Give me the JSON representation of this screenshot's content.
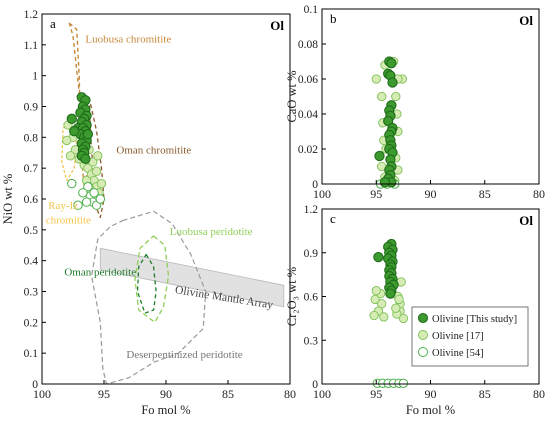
{
  "colors": {
    "this_study_fill": "#3d9a2e",
    "this_study_stroke": "#1f6b1a",
    "ref17_fill": "#d6ecb4",
    "ref17_stroke": "#7fc15a",
    "ref54_stroke": "#4caf4a",
    "luobusa_chromitite": "#c8893b",
    "oman_chromitite": "#8a5a2b",
    "ray_iz": "#f2c64b",
    "luobusa_peridotite": "#8fcf5a",
    "oman_peridotite": "#1e7d2a",
    "deserp": "#9a9a9a",
    "mantle_array": "#dcdcdc"
  },
  "chart_data": [
    {
      "panel": "a",
      "type": "scatter",
      "tag": "Ol",
      "xlabel": "Fo mol %",
      "ylabel": "NiO wt %",
      "xlim": [
        100,
        80
      ],
      "ylim": [
        0,
        1.2
      ],
      "xticks": [
        "100",
        "95",
        "90",
        "85",
        "80"
      ],
      "yticks": [
        "0",
        "0.1",
        "0.2",
        "0.3",
        "0.4",
        "0.5",
        "0.6",
        "0.7",
        "0.8",
        "0.9",
        "1",
        "1.1",
        "1.2"
      ],
      "field_labels": {
        "luobusa_chromitite": "Luobusa chromitite",
        "oman_chromitite": "Oman chromitite",
        "ray_iz_1": "Ray-Iz",
        "ray_iz_2": "chromitite",
        "luobusa_peridotite": "Luobusa peridotite",
        "oman_peridotite": "Oman peridotite",
        "mantle_array": "Olivine Mantle Array",
        "deserp": "Deserpentinized peridotite"
      },
      "fields": {
        "luobusa_chromitite": [
          [
            97.8,
            1.17
          ],
          [
            97.2,
            1.15
          ],
          [
            97.0,
            1.0
          ],
          [
            96.9,
            0.85
          ],
          [
            96.8,
            0.72
          ],
          [
            96.6,
            0.64
          ],
          [
            96.3,
            0.7
          ],
          [
            96.6,
            0.82
          ],
          [
            97.1,
            0.98
          ],
          [
            97.5,
            1.13
          ]
        ],
        "oman_chromitite": [
          [
            96.2,
            0.93
          ],
          [
            95.6,
            0.82
          ],
          [
            95.2,
            0.7
          ],
          [
            95.0,
            0.6
          ],
          [
            95.3,
            0.54
          ],
          [
            95.7,
            0.58
          ],
          [
            95.9,
            0.7
          ],
          [
            96.1,
            0.82
          ]
        ],
        "ray_iz": [
          [
            98.3,
            0.83
          ],
          [
            97.6,
            0.85
          ],
          [
            97.2,
            0.78
          ],
          [
            97.4,
            0.7
          ],
          [
            98.0,
            0.66
          ],
          [
            98.4,
            0.72
          ]
        ],
        "luobusa_peridotite": [
          [
            91.0,
            0.48
          ],
          [
            90.1,
            0.45
          ],
          [
            89.8,
            0.35
          ],
          [
            90.2,
            0.25
          ],
          [
            90.9,
            0.2
          ],
          [
            92.2,
            0.24
          ],
          [
            92.5,
            0.34
          ],
          [
            92.1,
            0.44
          ]
        ],
        "oman_peridotite": [
          [
            91.6,
            0.42
          ],
          [
            91.0,
            0.38
          ],
          [
            90.8,
            0.3
          ],
          [
            91.0,
            0.24
          ],
          [
            91.7,
            0.23
          ],
          [
            92.3,
            0.3
          ],
          [
            92.2,
            0.38
          ]
        ],
        "deserp": [
          [
            93.5,
            0.53
          ],
          [
            91.0,
            0.56
          ],
          [
            89.5,
            0.52
          ],
          [
            88.0,
            0.42
          ],
          [
            86.8,
            0.3
          ],
          [
            87.0,
            0.18
          ],
          [
            89.0,
            0.1
          ],
          [
            91.0,
            0.07
          ],
          [
            93.0,
            0.02
          ],
          [
            94.8,
            0.0
          ],
          [
            95.1,
            0.05
          ],
          [
            95.3,
            0.2
          ],
          [
            96.0,
            0.35
          ],
          [
            95.5,
            0.47
          ],
          [
            94.5,
            0.51
          ]
        ],
        "mantle_array": [
          [
            95.3,
            0.44
          ],
          [
            80.5,
            0.32
          ],
          [
            80.5,
            0.25
          ],
          [
            95.3,
            0.37
          ]
        ]
      },
      "series": [
        {
          "name": "Olivine [This study]",
          "points": [
            [
              96.8,
              0.93
            ],
            [
              96.5,
              0.92
            ],
            [
              96.7,
              0.9
            ],
            [
              96.5,
              0.89
            ],
            [
              96.9,
              0.88
            ],
            [
              96.4,
              0.87
            ],
            [
              97.6,
              0.86
            ],
            [
              96.6,
              0.86
            ],
            [
              96.8,
              0.85
            ],
            [
              96.4,
              0.84
            ],
            [
              97.1,
              0.83
            ],
            [
              96.7,
              0.83
            ],
            [
              96.5,
              0.82
            ],
            [
              96.9,
              0.81
            ],
            [
              96.6,
              0.8
            ],
            [
              96.4,
              0.79
            ],
            [
              96.8,
              0.78
            ],
            [
              96.5,
              0.77
            ],
            [
              96.7,
              0.76
            ],
            [
              96.6,
              0.75
            ],
            [
              96.8,
              0.74
            ],
            [
              96.5,
              0.73
            ],
            [
              97.4,
              0.82
            ],
            [
              96.3,
              0.81
            ]
          ]
        },
        {
          "name": "Olivine [17]",
          "points": [
            [
              97.9,
              0.84
            ],
            [
              97.5,
              0.8
            ],
            [
              97.3,
              0.76
            ],
            [
              97.0,
              0.73
            ],
            [
              96.6,
              0.71
            ],
            [
              96.3,
              0.7
            ],
            [
              96.0,
              0.68
            ],
            [
              95.8,
              0.66
            ],
            [
              95.6,
              0.64
            ],
            [
              95.4,
              0.62
            ],
            [
              95.7,
              0.6
            ],
            [
              96.1,
              0.63
            ],
            [
              96.4,
              0.66
            ],
            [
              95.9,
              0.72
            ],
            [
              95.5,
              0.74
            ],
            [
              96.2,
              0.76
            ],
            [
              97.7,
              0.74
            ],
            [
              98.0,
              0.79
            ],
            [
              95.2,
              0.65
            ],
            [
              95.6,
              0.69
            ]
          ]
        },
        {
          "name": "Olivine [54]",
          "points": [
            [
              96.3,
              0.64
            ],
            [
              96.1,
              0.61
            ],
            [
              95.9,
              0.59
            ],
            [
              95.6,
              0.58
            ],
            [
              96.4,
              0.59
            ],
            [
              95.8,
              0.62
            ],
            [
              95.3,
              0.6
            ],
            [
              96.7,
              0.62
            ],
            [
              97.6,
              0.65
            ],
            [
              97.1,
              0.58
            ]
          ]
        }
      ]
    },
    {
      "panel": "b",
      "type": "scatter",
      "tag": "Ol",
      "xlabel": "",
      "ylabel": "CaO wt %",
      "xlim": [
        100,
        80
      ],
      "ylim": [
        0,
        0.1
      ],
      "xticks": [
        "100",
        "95",
        "90",
        "85",
        "80"
      ],
      "yticks": [
        "0",
        "0.02",
        "0.04",
        "0.06",
        "0.08",
        "0.1"
      ],
      "series": [
        {
          "name": "Olivine [This study]",
          "points": [
            [
              93.8,
              0.07
            ],
            [
              93.6,
              0.069
            ],
            [
              93.9,
              0.063
            ],
            [
              93.7,
              0.062
            ],
            [
              93.5,
              0.058
            ],
            [
              93.6,
              0.045
            ],
            [
              93.8,
              0.042
            ],
            [
              93.7,
              0.039
            ],
            [
              93.9,
              0.036
            ],
            [
              93.5,
              0.032
            ],
            [
              93.6,
              0.03
            ],
            [
              93.8,
              0.028
            ],
            [
              93.7,
              0.025
            ],
            [
              93.6,
              0.022
            ],
            [
              93.8,
              0.02
            ],
            [
              93.5,
              0.018
            ],
            [
              94.7,
              0.016
            ],
            [
              93.7,
              0.014
            ],
            [
              93.6,
              0.01
            ],
            [
              93.8,
              0.008
            ],
            [
              93.7,
              0.005
            ],
            [
              93.9,
              0.003
            ],
            [
              93.6,
              0.001
            ],
            [
              94.2,
              0.001
            ]
          ]
        },
        {
          "name": "Olivine [17]",
          "points": [
            [
              95.0,
              0.06
            ],
            [
              92.6,
              0.06
            ],
            [
              93.0,
              0.06
            ],
            [
              94.2,
              0.068
            ],
            [
              93.4,
              0.07
            ],
            [
              94.5,
              0.05
            ],
            [
              93.2,
              0.05
            ],
            [
              94.4,
              0.035
            ],
            [
              93.1,
              0.04
            ],
            [
              94.3,
              0.025
            ],
            [
              93.0,
              0.03
            ],
            [
              94.1,
              0.02
            ],
            [
              93.2,
              0.015
            ],
            [
              94.5,
              0.01
            ],
            [
              93.0,
              0.008
            ],
            [
              94.2,
              0.004
            ],
            [
              93.3,
              0.002
            ]
          ]
        },
        {
          "name": "Olivine [54]",
          "points": [
            [
              94.0,
              0.0
            ],
            [
              93.3,
              0.0
            ],
            [
              94.6,
              0.0
            ]
          ]
        }
      ]
    },
    {
      "panel": "c",
      "type": "scatter",
      "tag": "Ol",
      "xlabel": "Fo mol %",
      "ylabel": "Cr₂O₃ wt %",
      "xlim": [
        100,
        80
      ],
      "ylim": [
        0,
        1.2
      ],
      "xticks": [
        "100",
        "95",
        "90",
        "85",
        "80"
      ],
      "yticks": [
        "0",
        "0.3",
        "0.6",
        "0.9",
        "1.2"
      ],
      "series": [
        {
          "name": "Olivine [This study]",
          "points": [
            [
              93.6,
              0.96
            ],
            [
              93.9,
              0.94
            ],
            [
              93.5,
              0.92
            ],
            [
              93.8,
              0.9
            ],
            [
              93.6,
              0.88
            ],
            [
              94.8,
              0.87
            ],
            [
              93.9,
              0.86
            ],
            [
              93.5,
              0.84
            ],
            [
              93.7,
              0.82
            ],
            [
              93.6,
              0.8
            ],
            [
              93.8,
              0.78
            ],
            [
              93.6,
              0.76
            ],
            [
              93.8,
              0.74
            ],
            [
              93.5,
              0.72
            ],
            [
              93.7,
              0.7
            ],
            [
              93.4,
              0.68
            ],
            [
              93.8,
              0.66
            ],
            [
              93.6,
              0.64
            ],
            [
              93.7,
              0.62
            ]
          ]
        },
        {
          "name": "Olivine [17]",
          "points": [
            [
              92.7,
              0.7
            ],
            [
              93.0,
              0.6
            ],
            [
              95.1,
              0.58
            ],
            [
              94.5,
              0.55
            ],
            [
              94.8,
              0.5
            ],
            [
              95.2,
              0.47
            ],
            [
              94.3,
              0.46
            ],
            [
              92.8,
              0.5
            ],
            [
              92.5,
              0.45
            ],
            [
              93.1,
              0.48
            ],
            [
              92.8,
              0.55
            ],
            [
              94.6,
              0.62
            ],
            [
              93.2,
              0.52
            ],
            [
              95.0,
              0.64
            ],
            [
              92.9,
              0.58
            ]
          ]
        },
        {
          "name": "Olivine [54]",
          "points": [
            [
              94.9,
              0.005
            ],
            [
              94.4,
              0.005
            ],
            [
              93.9,
              0.005
            ],
            [
              93.4,
              0.005
            ],
            [
              92.9,
              0.005
            ],
            [
              92.5,
              0.005
            ]
          ]
        }
      ]
    }
  ],
  "legend": {
    "items": [
      "Olivine [This study]",
      "Olivine [17]",
      "Olivine [54]"
    ]
  }
}
